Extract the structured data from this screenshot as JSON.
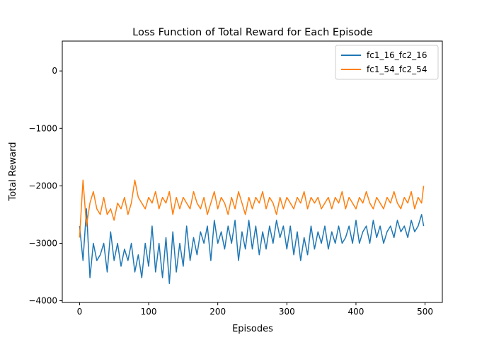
{
  "chart_data": {
    "type": "line",
    "title": "Loss Function of Total Reward for Each Episode",
    "xlabel": "Episodes",
    "ylabel": "Total Reward",
    "xlim": [
      -25,
      525
    ],
    "ylim": [
      -4030,
      520
    ],
    "xticks": [
      0,
      100,
      200,
      300,
      400,
      500
    ],
    "xtick_labels": [
      "0",
      "100",
      "200",
      "300",
      "400",
      "500"
    ],
    "yticks": [
      0,
      -1000,
      -2000,
      -3000,
      -4000
    ],
    "ytick_labels": [
      "0",
      "−1000",
      "−2000",
      "−3000",
      "−4000"
    ],
    "grid": false,
    "legend_position": "top-right",
    "series": [
      {
        "name": "fc1_16_fc2_16",
        "color": "#1f77b4",
        "x": [
          0,
          5,
          10,
          15,
          20,
          25,
          30,
          35,
          40,
          45,
          50,
          55,
          60,
          65,
          70,
          75,
          80,
          85,
          90,
          95,
          100,
          105,
          110,
          115,
          120,
          125,
          130,
          135,
          140,
          145,
          150,
          155,
          160,
          165,
          170,
          175,
          180,
          185,
          190,
          195,
          200,
          205,
          210,
          215,
          220,
          225,
          230,
          235,
          240,
          245,
          250,
          255,
          260,
          265,
          270,
          275,
          280,
          285,
          290,
          295,
          300,
          305,
          310,
          315,
          320,
          325,
          330,
          335,
          340,
          345,
          350,
          355,
          360,
          365,
          370,
          375,
          380,
          385,
          390,
          395,
          400,
          405,
          410,
          415,
          420,
          425,
          430,
          435,
          440,
          445,
          450,
          455,
          460,
          465,
          470,
          475,
          480,
          485,
          490,
          495,
          498
        ],
        "values": [
          -2700,
          -3300,
          -2400,
          -3600,
          -3000,
          -3300,
          -3200,
          -3000,
          -3500,
          -2800,
          -3300,
          -3000,
          -3400,
          -3100,
          -3300,
          -3000,
          -3500,
          -3200,
          -3600,
          -3000,
          -3400,
          -2700,
          -3500,
          -3000,
          -3600,
          -2900,
          -3700,
          -2800,
          -3500,
          -3000,
          -3400,
          -2700,
          -3300,
          -2900,
          -3200,
          -2800,
          -3000,
          -2700,
          -3300,
          -2600,
          -3000,
          -2800,
          -3100,
          -2700,
          -3000,
          -2600,
          -3300,
          -2800,
          -3100,
          -2600,
          -3100,
          -2700,
          -3200,
          -2800,
          -3100,
          -2700,
          -3000,
          -2600,
          -2900,
          -2700,
          -3100,
          -2700,
          -3200,
          -2800,
          -3300,
          -2900,
          -3200,
          -2700,
          -3100,
          -2800,
          -3000,
          -2700,
          -3100,
          -2800,
          -3000,
          -2700,
          -3000,
          -2900,
          -2700,
          -3000,
          -2600,
          -3000,
          -2800,
          -2700,
          -3000,
          -2600,
          -2900,
          -2700,
          -3000,
          -2800,
          -2700,
          -2900,
          -2600,
          -2800,
          -2700,
          -2900,
          -2600,
          -2800,
          -2700,
          -2500,
          -2700
        ]
      },
      {
        "name": "fc1_54_fc2_54",
        "color": "#ff7f0e",
        "x": [
          0,
          5,
          10,
          15,
          20,
          25,
          30,
          35,
          40,
          45,
          50,
          55,
          60,
          65,
          70,
          75,
          80,
          85,
          90,
          95,
          100,
          105,
          110,
          115,
          120,
          125,
          130,
          135,
          140,
          145,
          150,
          155,
          160,
          165,
          170,
          175,
          180,
          185,
          190,
          195,
          200,
          205,
          210,
          215,
          220,
          225,
          230,
          235,
          240,
          245,
          250,
          255,
          260,
          265,
          270,
          275,
          280,
          285,
          290,
          295,
          300,
          305,
          310,
          315,
          320,
          325,
          330,
          335,
          340,
          345,
          350,
          355,
          360,
          365,
          370,
          375,
          380,
          385,
          390,
          395,
          400,
          405,
          410,
          415,
          420,
          425,
          430,
          435,
          440,
          445,
          450,
          455,
          460,
          465,
          470,
          475,
          480,
          485,
          490,
          495,
          498
        ],
        "values": [
          -2900,
          -1900,
          -2700,
          -2300,
          -2100,
          -2400,
          -2500,
          -2200,
          -2500,
          -2400,
          -2600,
          -2300,
          -2400,
          -2200,
          -2500,
          -2300,
          -1900,
          -2200,
          -2300,
          -2400,
          -2200,
          -2300,
          -2100,
          -2400,
          -2200,
          -2300,
          -2100,
          -2500,
          -2200,
          -2400,
          -2200,
          -2300,
          -2400,
          -2100,
          -2300,
          -2400,
          -2200,
          -2500,
          -2300,
          -2100,
          -2400,
          -2200,
          -2300,
          -2500,
          -2200,
          -2400,
          -2100,
          -2300,
          -2500,
          -2200,
          -2400,
          -2200,
          -2300,
          -2100,
          -2400,
          -2200,
          -2300,
          -2500,
          -2200,
          -2400,
          -2200,
          -2300,
          -2400,
          -2200,
          -2300,
          -2100,
          -2400,
          -2200,
          -2300,
          -2200,
          -2400,
          -2300,
          -2200,
          -2400,
          -2200,
          -2300,
          -2100,
          -2400,
          -2200,
          -2300,
          -2400,
          -2200,
          -2300,
          -2100,
          -2300,
          -2400,
          -2200,
          -2300,
          -2400,
          -2200,
          -2300,
          -2100,
          -2300,
          -2400,
          -2200,
          -2300,
          -2100,
          -2400,
          -2200,
          -2300,
          -2000
        ]
      }
    ]
  }
}
